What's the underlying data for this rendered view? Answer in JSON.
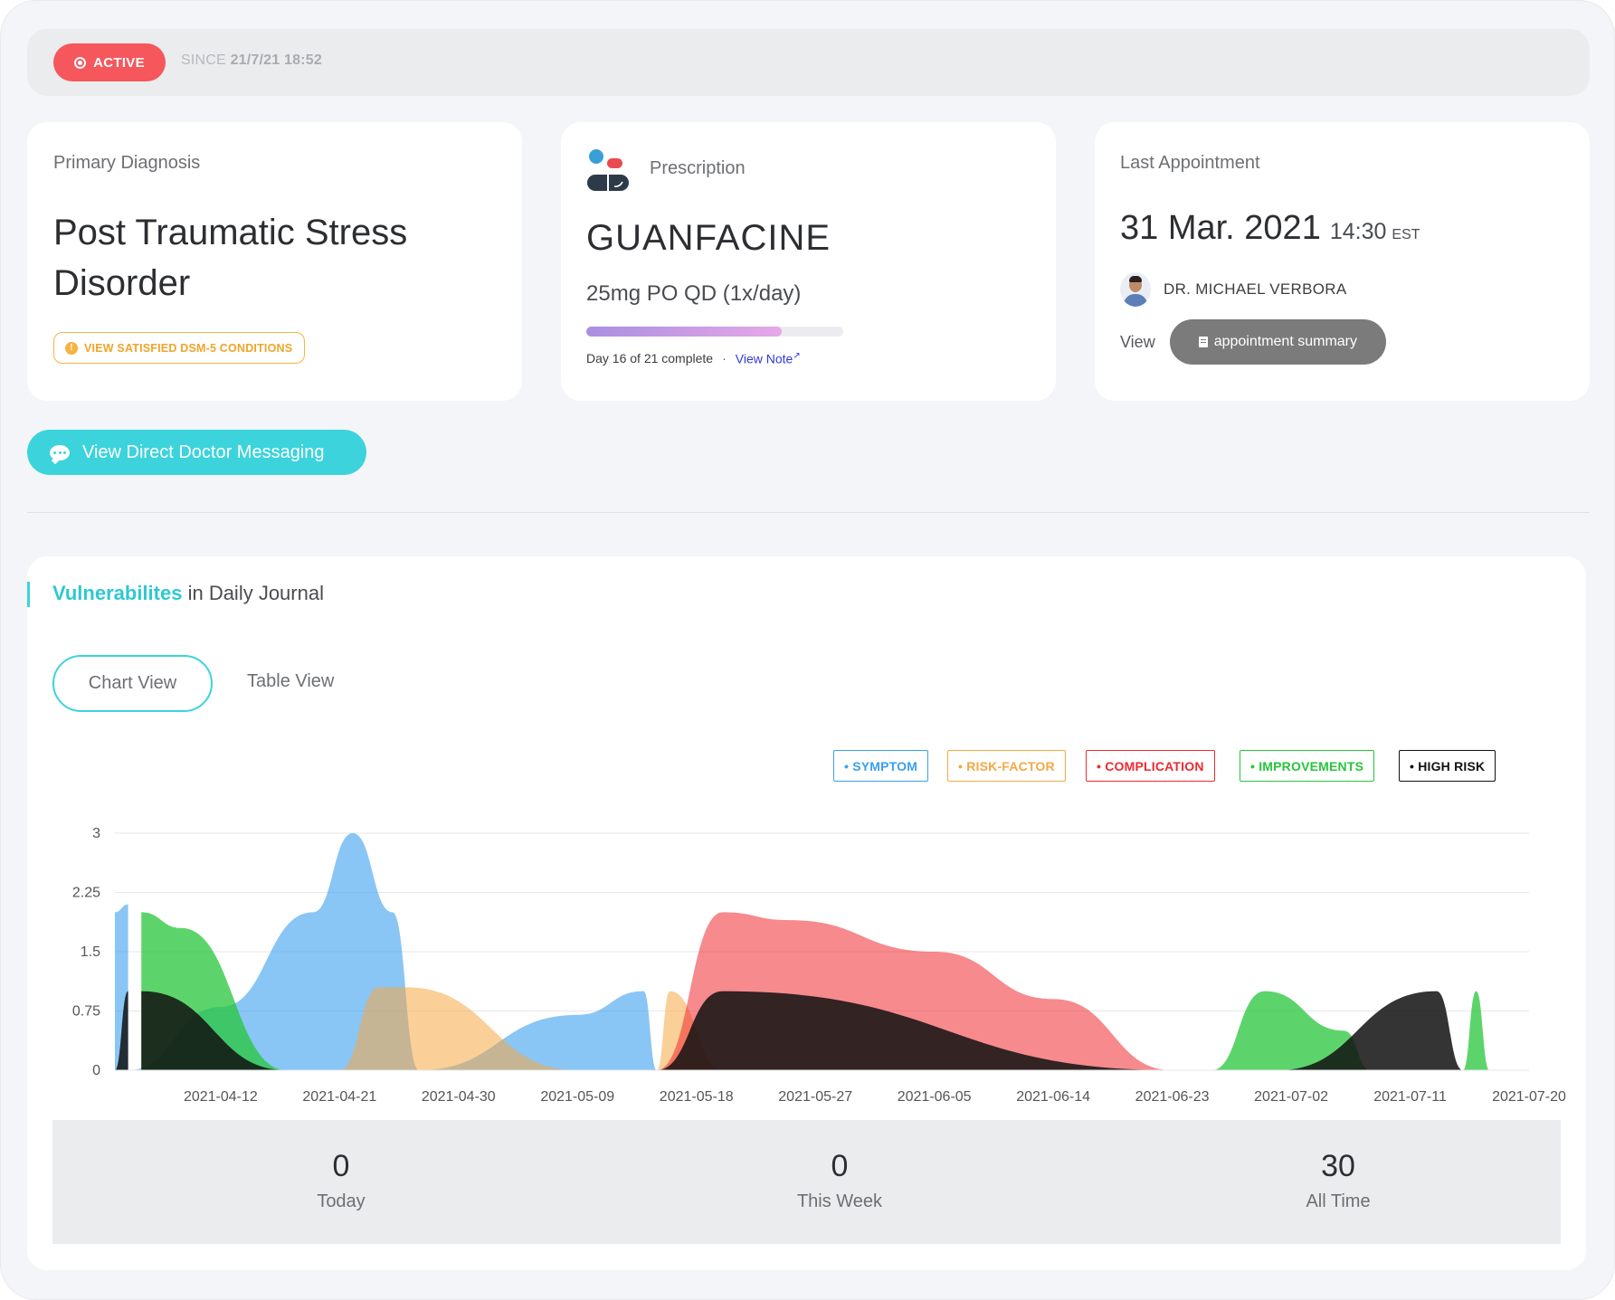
{
  "status": {
    "badge": "ACTIVE",
    "since_label": "SINCE",
    "since_value": "21/7/21 18:52"
  },
  "diagnosis": {
    "label": "Primary Diagnosis",
    "title": "Post Traumatic Stress Disorder",
    "dsm_button": "VIEW SATISFIED DSM-5 CONDITIONS"
  },
  "prescription": {
    "label": "Prescription",
    "drug": "GUANFACINE",
    "dose": "25mg PO QD (1x/day)",
    "progress_fraction": 0.762,
    "progress_text": "Day 16 of 21 complete",
    "separator": "·",
    "view_note": "View Note"
  },
  "appointment": {
    "label": "Last Appointment",
    "date": "31 Mar. 2021",
    "time": "14:30",
    "zone": "EST",
    "doctor": "DR. MICHAEL VERBORA",
    "view_label": "View",
    "summary_button": "appointment summary"
  },
  "messaging": {
    "button": "View Direct Doctor Messaging"
  },
  "vulnerabilities": {
    "title_bold": "Vulnerabilites",
    "title_rest": "in Daily Journal",
    "tabs": [
      "Chart View",
      "Table View"
    ],
    "active_tab": "Chart View",
    "legend": [
      {
        "label": "SYMPTOM",
        "color": "#3aa0ee"
      },
      {
        "label": "RISK-FACTOR",
        "color": "#f5a843"
      },
      {
        "label": "COMPLICATION",
        "color": "#ee2a2f"
      },
      {
        "label": "IMPROVEMENTS",
        "color": "#27c53a"
      },
      {
        "label": "HIGH RISK",
        "color": "#111111"
      }
    ],
    "stats": [
      {
        "value": "0",
        "label": "Today"
      },
      {
        "value": "0",
        "label": "This Week"
      },
      {
        "value": "30",
        "label": "All Time"
      }
    ]
  },
  "chart_data": {
    "type": "area",
    "title": "",
    "xlabel": "",
    "ylabel": "",
    "ylim": [
      0,
      3
    ],
    "xlim": [
      "2021-04-04",
      "2021-07-20"
    ],
    "y_ticks": [
      "0",
      "0.75",
      "1.5",
      "2.25",
      "3"
    ],
    "x_ticks": [
      "2021-04-12",
      "2021-04-21",
      "2021-04-30",
      "2021-05-09",
      "2021-05-18",
      "2021-05-27",
      "2021-06-05",
      "2021-06-14",
      "2021-06-23",
      "2021-07-02",
      "2021-07-11",
      "2021-07-20"
    ],
    "grid": true,
    "legend_position": "top-right",
    "series": [
      {
        "name": "SYMPTOM",
        "color": "#3aa0ee",
        "points": [
          [
            "2021-04-04",
            2.0
          ],
          [
            "2021-04-05",
            2.1
          ],
          [
            "2021-04-05",
            0
          ],
          [
            "2021-04-12",
            0.8
          ],
          [
            "2021-04-19",
            2.0
          ],
          [
            "2021-04-22",
            3.0
          ],
          [
            "2021-04-25",
            2.0
          ],
          [
            "2021-04-27",
            0
          ],
          [
            "2021-05-09",
            0.7
          ],
          [
            "2021-05-14",
            1.0
          ],
          [
            "2021-05-15",
            0
          ]
        ]
      },
      {
        "name": "RISK-FACTOR",
        "color": "#f5a843",
        "points": [
          [
            "2021-04-21",
            0
          ],
          [
            "2021-04-24",
            1.05
          ],
          [
            "2021-04-26",
            1.05
          ],
          [
            "2021-05-09",
            0
          ],
          [
            "2021-05-15",
            0
          ],
          [
            "2021-05-16",
            1.0
          ],
          [
            "2021-05-20",
            0
          ]
        ]
      },
      {
        "name": "COMPLICATION",
        "color": "#ee2a2f",
        "points": [
          [
            "2021-05-15",
            0
          ],
          [
            "2021-05-20",
            2.0
          ],
          [
            "2021-05-25",
            1.9
          ],
          [
            "2021-06-05",
            1.5
          ],
          [
            "2021-06-14",
            0.9
          ],
          [
            "2021-06-23",
            0
          ]
        ]
      },
      {
        "name": "IMPROVEMENTS",
        "color": "#27c53a",
        "points": [
          [
            "2021-04-06",
            0
          ],
          [
            "2021-04-06",
            2.0
          ],
          [
            "2021-04-09",
            1.8
          ],
          [
            "2021-04-17",
            0
          ],
          [
            "2021-06-26",
            0
          ],
          [
            "2021-06-30",
            1.0
          ],
          [
            "2021-07-06",
            0.5
          ],
          [
            "2021-07-08",
            0
          ],
          [
            "2021-07-15",
            0
          ],
          [
            "2021-07-16",
            1.0
          ],
          [
            "2021-07-17",
            0
          ]
        ]
      },
      {
        "name": "HIGH RISK",
        "color": "#111111",
        "points": [
          [
            "2021-04-04",
            0
          ],
          [
            "2021-04-05",
            1.0
          ],
          [
            "2021-04-05",
            0
          ],
          [
            "2021-04-06",
            0
          ],
          [
            "2021-04-06",
            1.0
          ],
          [
            "2021-04-17",
            0
          ],
          [
            "2021-05-15",
            0
          ],
          [
            "2021-05-20",
            1.0
          ],
          [
            "2021-06-23",
            0
          ],
          [
            "2021-07-01",
            0
          ],
          [
            "2021-07-13",
            1.0
          ],
          [
            "2021-07-15",
            0
          ]
        ]
      }
    ]
  }
}
